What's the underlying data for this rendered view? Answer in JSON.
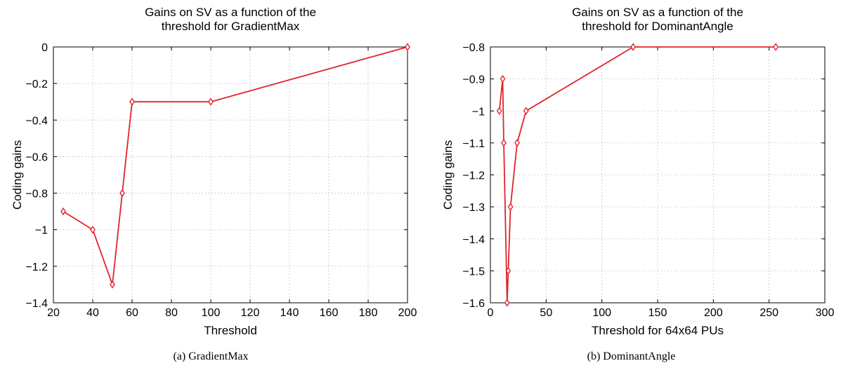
{
  "chart_data": [
    {
      "type": "line",
      "title": "Gains on SV as a function of the threshold for GradientMax",
      "title_lines": [
        "Gains on SV as a function of the",
        "threshold for GradientMax"
      ],
      "xlabel": "Threshold",
      "ylabel": "Coding gains",
      "xlim": [
        20,
        200
      ],
      "ylim": [
        -1.4,
        0
      ],
      "xticks": [
        20,
        40,
        60,
        80,
        100,
        120,
        140,
        160,
        180,
        200
      ],
      "xtick_labels": [
        "20",
        "40",
        "60",
        "80",
        "100",
        "120",
        "140",
        "160",
        "180",
        "200"
      ],
      "yticks": [
        -1.4,
        -1.2,
        -1,
        -0.8,
        -0.6,
        -0.4,
        -0.2,
        0
      ],
      "ytick_labels": [
        "−1.4",
        "−1.2",
        "−1",
        "−0.8",
        "−0.6",
        "−0.4",
        "−0.2",
        "0"
      ],
      "grid": true,
      "series": [
        {
          "color": "#e2232a",
          "marker": "diamond",
          "x": [
            25,
            40,
            50,
            55,
            60,
            100,
            200
          ],
          "y": [
            -0.9,
            -1.0,
            -1.3,
            -0.8,
            -0.3,
            -0.3,
            0
          ]
        }
      ],
      "caption": "(a) GradientMax"
    },
    {
      "type": "line",
      "title": "Gains on SV as a function of the threshold for DominantAngle",
      "title_lines": [
        "Gains on SV as a function of the",
        "threshold for DominantAngle"
      ],
      "xlabel": "Threshold for 64x64 PUs",
      "ylabel": "Coding gains",
      "xlim": [
        0,
        300
      ],
      "ylim": [
        -1.6,
        -0.8
      ],
      "xticks": [
        0,
        50,
        100,
        150,
        200,
        250,
        300
      ],
      "xtick_labels": [
        "0",
        "50",
        "100",
        "150",
        "200",
        "250",
        "300"
      ],
      "yticks": [
        -1.6,
        -1.5,
        -1.4,
        -1.3,
        -1.2,
        -1.1,
        -1.0,
        -0.9,
        -0.8
      ],
      "ytick_labels": [
        "−1.6",
        "−1.5",
        "−1.4",
        "−1.3",
        "−1.2",
        "−1.1",
        "−1",
        "−0.9",
        "−0.8"
      ],
      "grid": true,
      "series": [
        {
          "color": "#e2232a",
          "marker": "diamond",
          "x": [
            8,
            11,
            12,
            15,
            16,
            18,
            24,
            32,
            128,
            256
          ],
          "y": [
            -1.0,
            -0.9,
            -1.1,
            -1.6,
            -1.5,
            -1.3,
            -1.1,
            -1.0,
            -0.8,
            -0.8
          ]
        }
      ],
      "caption": "(b) DominantAngle"
    }
  ]
}
